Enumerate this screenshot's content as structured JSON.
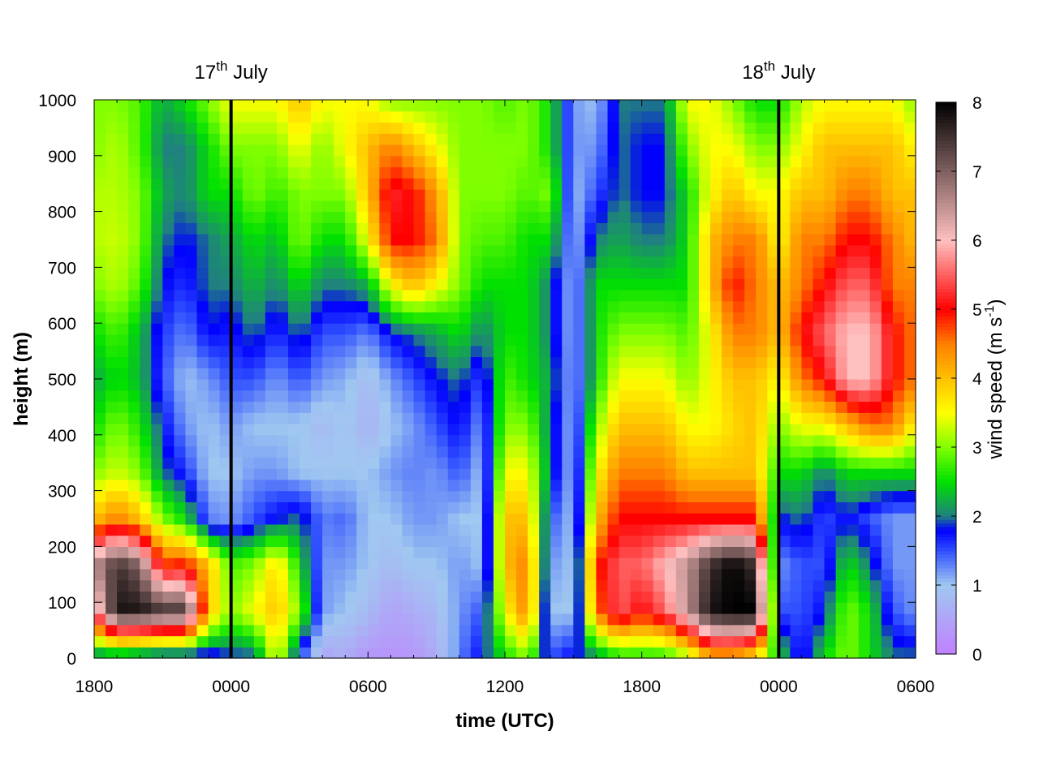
{
  "chart_data": {
    "type": "heatmap",
    "title": "",
    "xlabel": "time (UTC)",
    "ylabel": "height (m)",
    "colorbar_label": "wind speed (m s",
    "colorbar_label_sup": "-1",
    "colorbar_label_end": ")",
    "xlim_hours": [
      0,
      36
    ],
    "ylim": [
      0,
      1000
    ],
    "x_tick_labels": [
      "1800",
      "0000",
      "0600",
      "1200",
      "1800",
      "0000",
      "0600"
    ],
    "y_ticks": [
      0,
      100,
      200,
      300,
      400,
      500,
      600,
      700,
      800,
      900,
      1000
    ],
    "y_tick_labels": [
      "0",
      "100",
      "200",
      "300",
      "400",
      "500",
      "600",
      "700",
      "800",
      "900",
      "1000"
    ],
    "colorbar_ticks": [
      "0",
      "1",
      "2",
      "3",
      "4",
      "5",
      "6",
      "7",
      "8"
    ],
    "zlim": [
      0,
      8
    ],
    "day_markers": [
      {
        "label": "17",
        "sup": "th",
        "rest": " July",
        "hour": 6
      },
      {
        "label": "18",
        "sup": "th",
        "rest": " July",
        "hour": 30
      }
    ],
    "colormap": [
      [
        0,
        "#c080ff"
      ],
      [
        1,
        "#a0c8f0"
      ],
      [
        1.5,
        "#3050ff"
      ],
      [
        1.8,
        "#0000ff"
      ],
      [
        2,
        "#208080"
      ],
      [
        2.5,
        "#00e000"
      ],
      [
        3,
        "#80ff00"
      ],
      [
        3.5,
        "#ffff00"
      ],
      [
        4,
        "#ffc000"
      ],
      [
        4.5,
        "#ff8000"
      ],
      [
        5,
        "#ff0000"
      ],
      [
        6,
        "#ffc0c0"
      ],
      [
        7,
        "#806060"
      ],
      [
        8,
        "#000000"
      ]
    ],
    "grid_heights": [
      0,
      50,
      100,
      150,
      200,
      250,
      300,
      350,
      400,
      450,
      500,
      550,
      600,
      650,
      700,
      750,
      800,
      850,
      900,
      950,
      1000
    ],
    "grid_hours": [
      0,
      1,
      2,
      3,
      4,
      5,
      6,
      7,
      8,
      9,
      10,
      11,
      12,
      13,
      14,
      15,
      16,
      17,
      18,
      19,
      20,
      21,
      22,
      23,
      24,
      25,
      26,
      27,
      28,
      29,
      30,
      31,
      32,
      33,
      34,
      35,
      36
    ],
    "values": [
      [
        1.8,
        5.5,
        6.5,
        4.0,
        3.0,
        2.5,
        2.2,
        2.5,
        3.0,
        3.2,
        3.2,
        3.0,
        3.0
      ],
      [
        1.8,
        7.8,
        7.5,
        4.5,
        3.3,
        3.0,
        2.5,
        2.8,
        3.2,
        3.3,
        3.2,
        3.2,
        3.0
      ],
      [
        1.6,
        7.8,
        7.0,
        4.0,
        3.0,
        2.6,
        2.3,
        2.3,
        2.8,
        3.0,
        3.0,
        2.8,
        2.8
      ],
      [
        1.4,
        7.5,
        4.8,
        3.0,
        2.0,
        1.8,
        1.5,
        1.6,
        1.8,
        2.0,
        2.2,
        2.0,
        2.2
      ],
      [
        1.4,
        7.5,
        5.0,
        2.5,
        1.6,
        1.2,
        1.0,
        1.3,
        1.6,
        1.8,
        2.0,
        2.0,
        2.5
      ],
      [
        1.5,
        4.0,
        4.0,
        1.3,
        1.0,
        1.0,
        1.2,
        1.8,
        2.0,
        2.0,
        2.5,
        2.5,
        3.0
      ],
      [
        1.8,
        3.0,
        2.8,
        1.2,
        1.0,
        1.2,
        1.5,
        1.7,
        2.0,
        2.2,
        2.5,
        3.0,
        3.5
      ],
      [
        1.8,
        3.5,
        3.0,
        1.5,
        1.2,
        1.0,
        1.5,
        2.0,
        2.3,
        2.5,
        3.0,
        3.0,
        3.5
      ],
      [
        3.5,
        4.0,
        3.8,
        1.8,
        1.2,
        1.0,
        1.2,
        1.6,
        2.0,
        2.3,
        2.7,
        3.0,
        3.5
      ],
      [
        1.5,
        3.0,
        2.5,
        2.0,
        1.0,
        1.0,
        1.5,
        2.0,
        2.5,
        3.0,
        3.0,
        3.5,
        4.0
      ],
      [
        0.5,
        1.2,
        1.2,
        1.3,
        1.0,
        0.8,
        1.2,
        1.5,
        2.0,
        2.5,
        3.0,
        3.0,
        3.5
      ],
      [
        0.6,
        1.0,
        1.2,
        1.4,
        1.0,
        1.0,
        1.1,
        1.5,
        2.0,
        2.5,
        3.0,
        3.5,
        3.5
      ],
      [
        0.3,
        0.8,
        1.0,
        1.0,
        1.0,
        0.7,
        0.8,
        1.3,
        2.2,
        3.5,
        4.0,
        4.0,
        3.5
      ],
      [
        0.3,
        0.5,
        0.8,
        1.0,
        1.2,
        1.0,
        1.2,
        1.8,
        3.5,
        5.0,
        5.2,
        4.5,
        3.0
      ],
      [
        0.3,
        0.6,
        1.0,
        1.2,
        1.3,
        1.2,
        1.5,
        2.0,
        4.0,
        5.0,
        5.0,
        4.0,
        3.0
      ],
      [
        0.6,
        0.8,
        1.0,
        1.2,
        1.2,
        1.5,
        1.8,
        2.2,
        3.5,
        4.5,
        4.3,
        3.5,
        3.0
      ],
      [
        1.3,
        1.2,
        1.2,
        1.0,
        1.5,
        1.8,
        2.0,
        2.5,
        3.0,
        3.0,
        3.0,
        3.0,
        3.0
      ],
      [
        1.8,
        1.5,
        1.0,
        1.0,
        1.0,
        1.2,
        1.5,
        2.0,
        2.5,
        2.8,
        3.0,
        3.0,
        3.0
      ],
      [
        2.5,
        3.5,
        4.0,
        4.0,
        3.5,
        3.0,
        2.8,
        2.5,
        2.5,
        2.8,
        3.0,
        3.0,
        2.8
      ],
      [
        3.0,
        4.5,
        4.5,
        4.0,
        3.5,
        3.0,
        2.5,
        2.5,
        2.5,
        2.5,
        2.8,
        3.0,
        3.0
      ],
      [
        1.5,
        1.0,
        1.2,
        1.5,
        2.0,
        2.0,
        2.2,
        2.0,
        2.0,
        2.5,
        3.0,
        2.5,
        2.5
      ],
      [
        1.8,
        1.0,
        1.0,
        1.0,
        1.0,
        1.0,
        1.0,
        1.0,
        1.0,
        1.0,
        1.0,
        1.2,
        1.2
      ],
      [
        2.0,
        4.5,
        4.8,
        4.0,
        3.5,
        3.0,
        2.5,
        2.5,
        2.5,
        2.0,
        1.5,
        1.2,
        1.0
      ],
      [
        2.5,
        5.5,
        5.5,
        5.0,
        4.5,
        4.0,
        3.5,
        3.0,
        2.5,
        2.2,
        2.0,
        2.0,
        2.0
      ],
      [
        2.5,
        5.0,
        5.5,
        5.0,
        4.5,
        4.0,
        3.5,
        3.0,
        2.5,
        2.0,
        1.8,
        1.8,
        2.0
      ],
      [
        2.5,
        5.5,
        6.0,
        5.0,
        4.5,
        4.0,
        3.5,
        3.0,
        2.5,
        2.0,
        1.8,
        1.8,
        2.0
      ],
      [
        3.0,
        6.5,
        6.5,
        5.0,
        4.0,
        3.5,
        3.0,
        2.8,
        2.5,
        2.5,
        2.5,
        3.0,
        3.5
      ],
      [
        4.0,
        7.8,
        7.5,
        5.0,
        4.0,
        3.5,
        3.5,
        3.5,
        4.0,
        4.0,
        3.5,
        3.5,
        3.5
      ],
      [
        4.0,
        8.0,
        8.0,
        5.0,
        4.0,
        3.8,
        4.0,
        4.5,
        5.0,
        4.5,
        4.0,
        3.5,
        3.0
      ],
      [
        3.5,
        8.0,
        7.5,
        5.0,
        4.0,
        4.0,
        4.0,
        4.5,
        4.5,
        4.5,
        3.5,
        3.0,
        2.5
      ],
      [
        2.5,
        1.5,
        1.2,
        1.8,
        2.5,
        3.0,
        3.5,
        4.0,
        4.0,
        3.5,
        3.5,
        3.0,
        2.5
      ],
      [
        1.5,
        1.5,
        1.5,
        2.0,
        2.5,
        3.5,
        4.5,
        5.0,
        4.5,
        4.5,
        4.0,
        3.5,
        3.2
      ],
      [
        2.5,
        1.8,
        1.5,
        1.5,
        2.0,
        3.5,
        5.0,
        5.5,
        5.0,
        4.5,
        4.0,
        4.0,
        3.5
      ],
      [
        3.0,
        3.0,
        2.5,
        1.8,
        2.5,
        4.0,
        6.0,
        6.0,
        5.5,
        5.0,
        4.5,
        4.0,
        3.5
      ],
      [
        2.5,
        2.5,
        2.0,
        1.5,
        2.5,
        4.5,
        6.0,
        6.0,
        5.5,
        5.0,
        4.5,
        4.0,
        3.5
      ],
      [
        2.0,
        1.5,
        1.2,
        1.2,
        2.5,
        4.5,
        5.0,
        5.0,
        4.5,
        4.5,
        4.0,
        4.0,
        3.5
      ],
      [
        2.0,
        1.2,
        1.2,
        1.2,
        2.5,
        3.5,
        4.5,
        4.5,
        4.5,
        4.0,
        4.0,
        3.5,
        3.0
      ]
    ],
    "values_layout": "rows are hours 0..36, columns are heights 0,83,167,...,1000 m (13 levels)"
  }
}
